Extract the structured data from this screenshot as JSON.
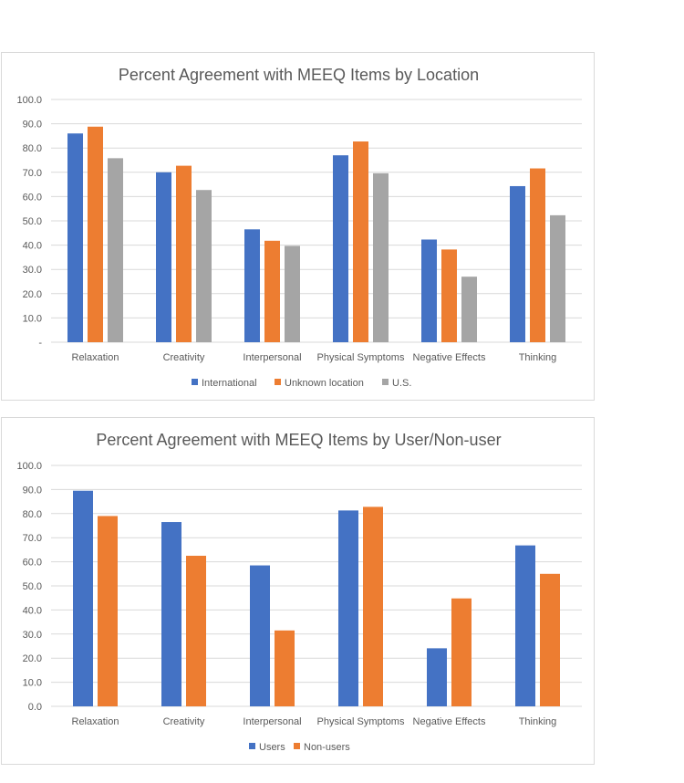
{
  "chart_data": [
    {
      "type": "bar",
      "title": "Percent Agreement with MEEQ Items by Location",
      "xlabel": "",
      "ylabel": "",
      "ylim": [
        0,
        100
      ],
      "yticks": [
        "-",
        "10.0",
        "20.0",
        "30.0",
        "40.0",
        "50.0",
        "60.0",
        "70.0",
        "80.0",
        "90.0",
        "100.0"
      ],
      "categories": [
        "Relaxation",
        "Creativity",
        "Interpersonal",
        "Physical Symptoms",
        "Negative Effects",
        "Thinking"
      ],
      "series": [
        {
          "name": "International",
          "color": "#4472c4",
          "values": [
            86.0,
            70.0,
            46.5,
            77.0,
            42.3,
            64.3
          ]
        },
        {
          "name": "Unknown location",
          "color": "#ed7d31",
          "values": [
            88.8,
            72.7,
            41.8,
            82.7,
            38.2,
            71.6
          ]
        },
        {
          "name": "U.S.",
          "color": "#a5a5a5",
          "values": [
            75.8,
            62.7,
            39.7,
            69.6,
            27.0,
            52.3
          ]
        }
      ],
      "grid": true,
      "legend": "bottom"
    },
    {
      "type": "bar",
      "title": "Percent Agreement with MEEQ Items by User/Non-user",
      "xlabel": "",
      "ylabel": "",
      "ylim": [
        0,
        100
      ],
      "yticks": [
        "0.0",
        "10.0",
        "20.0",
        "30.0",
        "40.0",
        "50.0",
        "60.0",
        "70.0",
        "80.0",
        "90.0",
        "100.0"
      ],
      "categories": [
        "Relaxation",
        "Creativity",
        "Interpersonal",
        "Physical Symptoms",
        "Negative Effects",
        "Thinking"
      ],
      "series": [
        {
          "name": "Users",
          "color": "#4472c4",
          "values": [
            89.5,
            76.5,
            58.5,
            81.3,
            24.1,
            66.8
          ]
        },
        {
          "name": "Non-users",
          "color": "#ed7d31",
          "values": [
            79.0,
            62.5,
            31.5,
            82.8,
            44.8,
            55.0
          ]
        }
      ],
      "grid": true,
      "legend": "bottom"
    }
  ]
}
